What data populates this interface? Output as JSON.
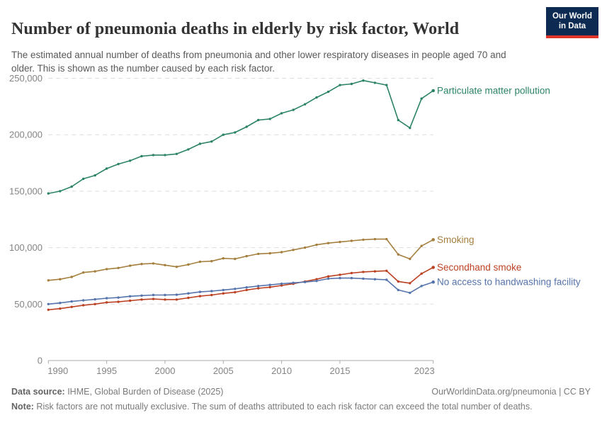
{
  "header": {
    "title": "Number of pneumonia deaths in elderly by risk factor, World",
    "subtitle": "The estimated annual number of deaths from pneumonia and other lower respiratory diseases in people aged 70 and older. This is shown as the number caused by each risk factor.",
    "logo": {
      "line1": "Our World",
      "line2": "in Data",
      "bg_color": "#0D2B52",
      "bar_color": "#E0352B"
    }
  },
  "chart_data": {
    "type": "line",
    "title": "Number of pneumonia deaths in elderly by risk factor, World",
    "xlabel": "",
    "ylabel": "",
    "x": [
      1990,
      1991,
      1992,
      1993,
      1994,
      1995,
      1996,
      1997,
      1998,
      1999,
      2000,
      2001,
      2002,
      2003,
      2004,
      2005,
      2006,
      2007,
      2008,
      2009,
      2010,
      2011,
      2012,
      2013,
      2014,
      2015,
      2016,
      2017,
      2018,
      2019,
      2020,
      2021,
      2022,
      2023
    ],
    "xticks": [
      1990,
      1995,
      2000,
      2005,
      2010,
      2015,
      2023
    ],
    "ylim": [
      0,
      250000
    ],
    "yticks": [
      0,
      50000,
      100000,
      150000,
      200000,
      250000
    ],
    "ytick_labels": [
      "0",
      "50,000",
      "100,000",
      "150,000",
      "200,000",
      "250,000"
    ],
    "grid": "horizontal-dashed",
    "legend_position": "end-of-line-labels",
    "axis_color": "#ABABAB",
    "grid_color": "#DDDDDD",
    "tick_label_color": "#848484",
    "series": [
      {
        "name": "Particulate matter pollution",
        "color": "#2C8465",
        "values": [
          148000,
          150000,
          154000,
          161000,
          164000,
          170000,
          174000,
          177000,
          181000,
          182000,
          182000,
          183000,
          187000,
          192000,
          194000,
          200000,
          202000,
          207000,
          213000,
          214000,
          219000,
          222000,
          227000,
          233000,
          238000,
          244000,
          245000,
          248000,
          246000,
          244000,
          213000,
          206000,
          232000,
          239000
        ]
      },
      {
        "name": "Smoking",
        "color": "#A57F3E",
        "values": [
          71000,
          72000,
          74000,
          78000,
          79000,
          81000,
          82000,
          84000,
          85500,
          86000,
          84500,
          83000,
          85000,
          87500,
          88000,
          90500,
          90000,
          92500,
          94500,
          95000,
          96000,
          98000,
          100000,
          102500,
          104000,
          105000,
          106000,
          107000,
          107500,
          107500,
          94000,
          90000,
          101500,
          107000
        ]
      },
      {
        "name": "Secondhand smoke",
        "color": "#BC4123",
        "values": [
          45000,
          46000,
          47500,
          49000,
          50000,
          51500,
          52000,
          53000,
          54000,
          54500,
          54000,
          54000,
          55500,
          57000,
          58000,
          59500,
          60500,
          62500,
          64000,
          65000,
          66500,
          68000,
          70000,
          72000,
          74500,
          76000,
          77500,
          78500,
          79000,
          79500,
          70000,
          68500,
          77000,
          82500
        ]
      },
      {
        "name": "No access to handwashing facility",
        "color": "#5674AC",
        "values": [
          50000,
          51000,
          52300,
          53300,
          54200,
          55200,
          55800,
          56900,
          57500,
          58000,
          58000,
          58300,
          59500,
          60800,
          61500,
          62500,
          63500,
          64800,
          66000,
          67000,
          68000,
          68800,
          69500,
          70500,
          72500,
          73000,
          73000,
          72500,
          72000,
          71500,
          62500,
          60000,
          66000,
          69500
        ]
      }
    ]
  },
  "footer": {
    "data_source_label": "Data source:",
    "data_source": " IHME, Global Burden of Disease (2025)",
    "link": "OurWorldinData.org/pneumonia | CC BY",
    "note_label": "Note:",
    "note": " Risk factors are not mutually exclusive. The sum of deaths attributed to each risk factor can exceed the total number of deaths."
  }
}
